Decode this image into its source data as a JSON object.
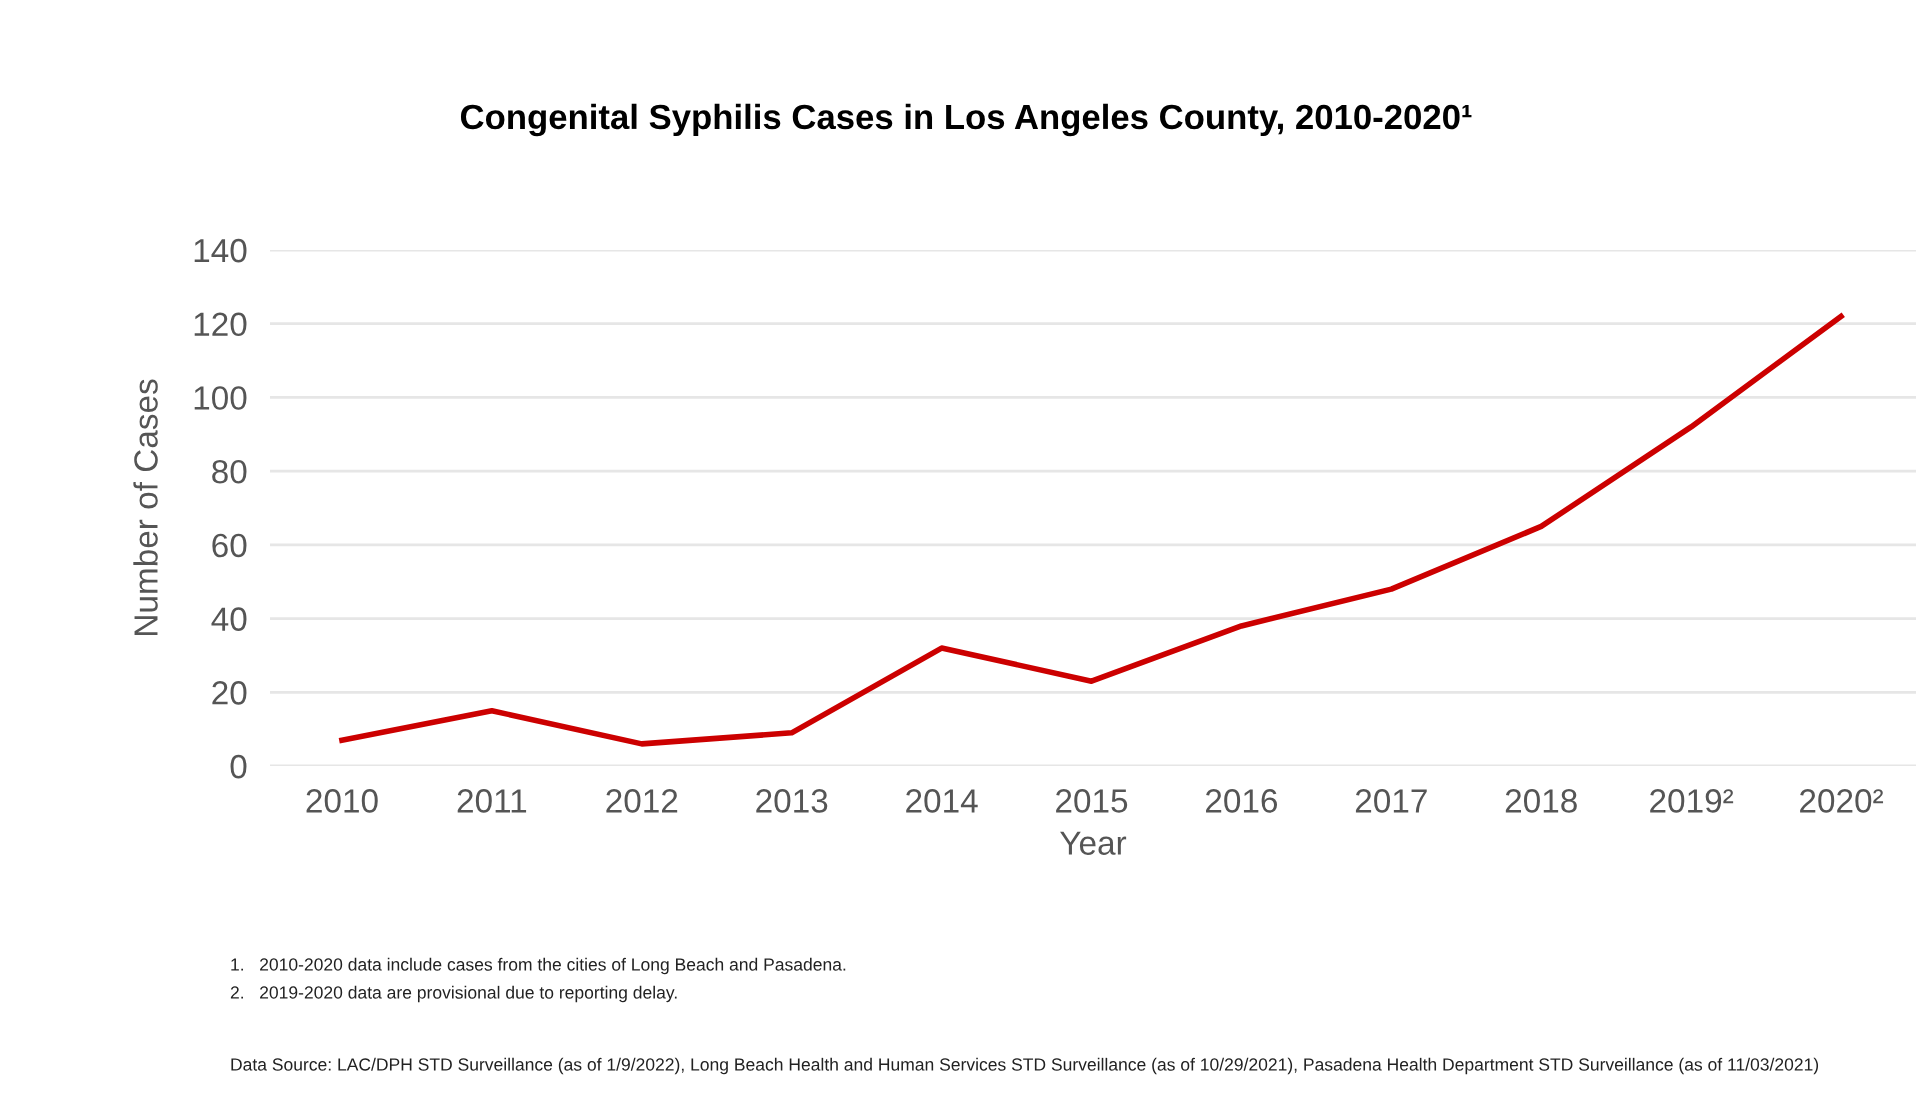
{
  "chart_data": {
    "type": "line",
    "title": "Congenital Syphilis Cases in Los Angeles County, 2010-2020¹",
    "xlabel": "Year",
    "ylabel": "Number of Cases",
    "categories": [
      "2010",
      "2011",
      "2012",
      "2013",
      "2014",
      "2015",
      "2016",
      "2017",
      "2018",
      "2019²",
      "2020²"
    ],
    "series": [
      {
        "color": "#cc0000",
        "values": [
          7,
          15,
          6,
          9,
          32,
          23,
          38,
          48,
          65,
          92,
          122
        ]
      }
    ],
    "ylim": [
      0,
      140
    ],
    "yticks": [
      0,
      20,
      40,
      60,
      80,
      100,
      120,
      140
    ],
    "grid": "y",
    "marker": "none",
    "line_style": "solid",
    "annotations": [
      "1.   2010-2020 data include cases from the cities of Long Beach and Pasadena.",
      "2.   2019-2020 data are provisional due to reporting delay.",
      "Data Source: LAC/DPH STD Surveillance (as of 1/9/2022), Long Beach Health and Human Services STD Surveillance (as of 10/29/2021), Pasadena Health Department STD Surveillance (as of 11/03/2021)"
    ]
  }
}
